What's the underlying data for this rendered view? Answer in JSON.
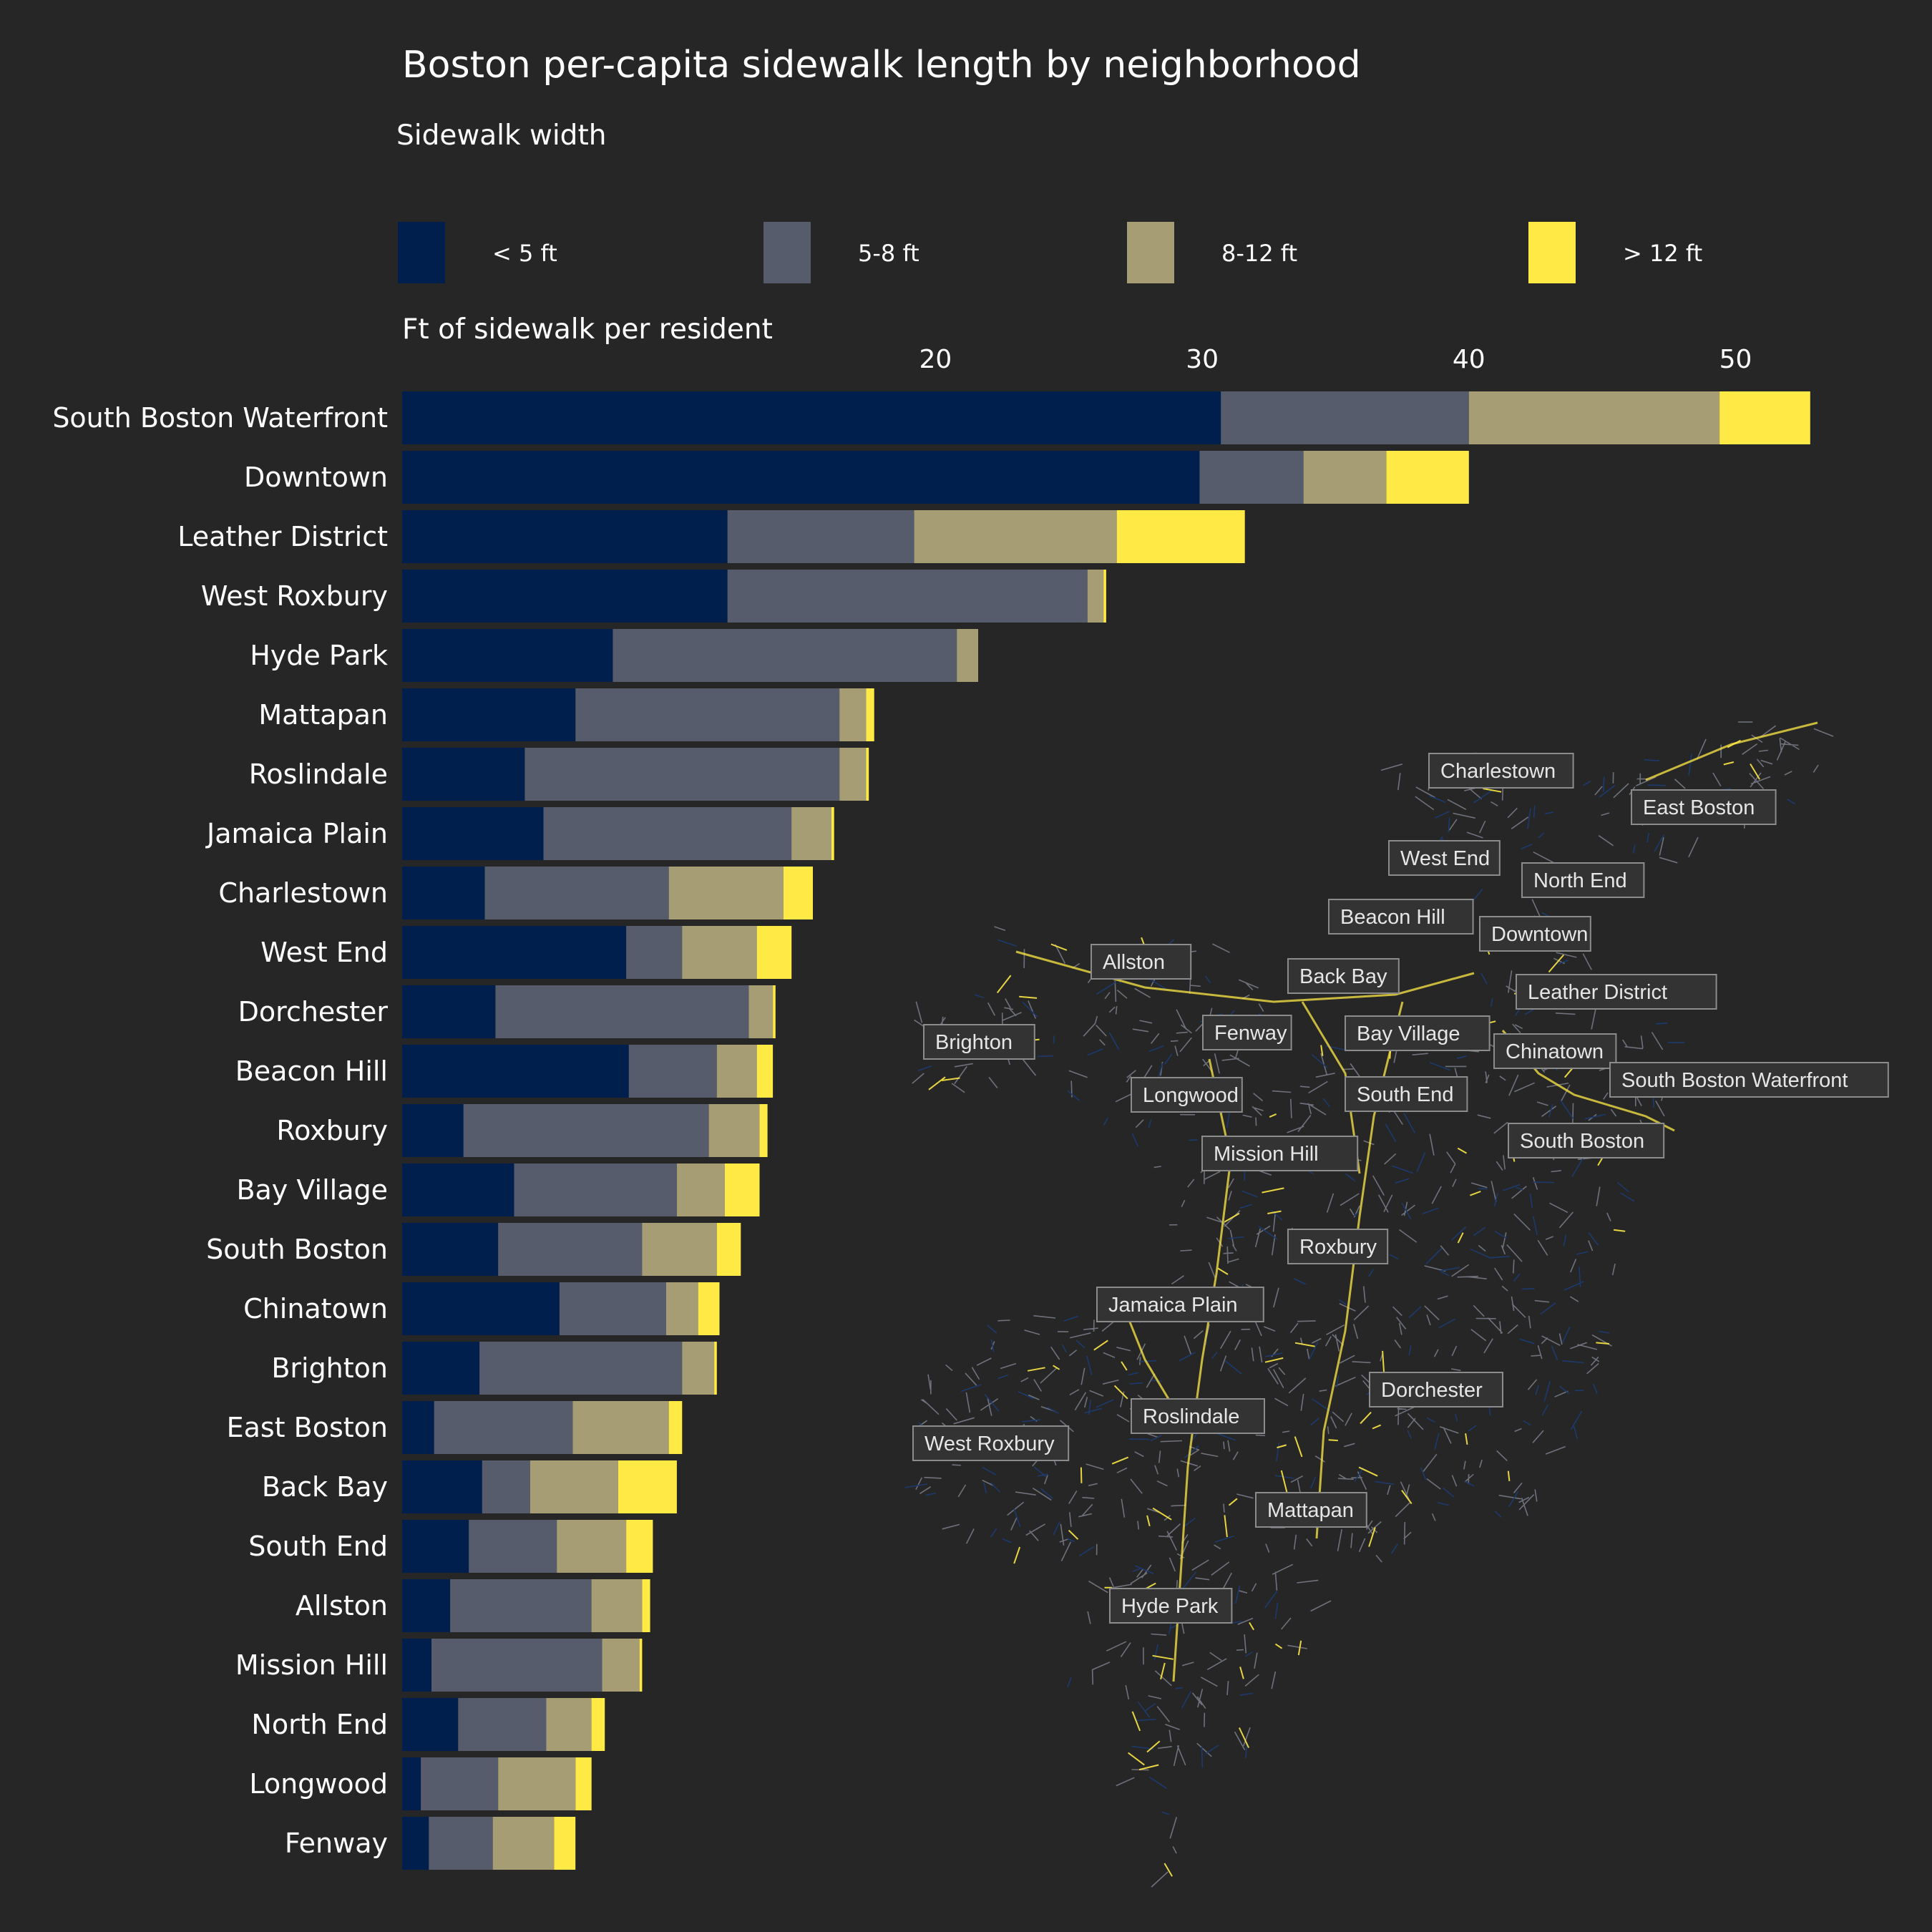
{
  "colors": {
    "background": "#262626",
    "lt5": "#001f4d",
    "5to8": "#575c6d",
    "8to12": "#a69d75",
    "gt12": "#ffe945",
    "map_street_gray": "#7c7f8c",
    "map_street_navy": "#1c3a6e",
    "map_street_yellow": "#ffe945"
  },
  "chart_data": {
    "type": "bar",
    "orientation": "horizontal",
    "stacked": true,
    "title": "Boston per-capita sidewalk length by neighborhood",
    "legend_title": "Sidewalk width",
    "legend_position": "top",
    "xlabel": "Ft of sidewalk per resident",
    "x_axis_position": "top",
    "xticks": [
      20,
      30,
      40,
      50
    ],
    "xlim": [
      0,
      55
    ],
    "grid": false,
    "categories": [
      "South Boston Waterfront",
      "Downtown",
      "Leather District",
      "West Roxbury",
      "Hyde Park",
      "Mattapan",
      "Roslindale",
      "Jamaica Plain",
      "Charlestown",
      "West End",
      "Dorchester",
      "Beacon Hill",
      "Roxbury",
      "Bay Village",
      "South Boston",
      "Chinatown",
      "Brighton",
      "East Boston",
      "Back Bay",
      "South End",
      "Allston",
      "Mission Hill",
      "North End",
      "Longwood",
      "Fenway"
    ],
    "series": [
      {
        "name": "< 5 ft",
        "color_key": "lt5",
        "values": [
          30.7,
          29.9,
          12.2,
          12.2,
          7.9,
          6.5,
          4.6,
          5.3,
          3.1,
          8.4,
          3.5,
          8.5,
          2.3,
          4.2,
          3.6,
          5.9,
          2.9,
          1.2,
          3.0,
          2.5,
          1.8,
          1.1,
          2.1,
          0.7,
          1.0
        ]
      },
      {
        "name": "5-8 ft",
        "color_key": "5to8",
        "values": [
          9.3,
          3.9,
          7.0,
          13.5,
          12.9,
          9.9,
          11.8,
          9.3,
          6.9,
          2.1,
          9.5,
          3.3,
          9.2,
          6.1,
          5.4,
          4.0,
          7.6,
          5.2,
          1.8,
          3.3,
          5.3,
          6.4,
          3.3,
          2.9,
          2.4
        ]
      },
      {
        "name": "8-12 ft",
        "color_key": "8to12",
        "values": [
          9.4,
          3.1,
          7.6,
          0.6,
          0.8,
          1.0,
          1.0,
          1.5,
          4.3,
          2.8,
          0.9,
          1.5,
          1.9,
          1.8,
          2.8,
          1.2,
          1.2,
          3.6,
          3.3,
          2.6,
          1.9,
          1.4,
          1.7,
          2.9,
          2.3
        ]
      },
      {
        "name": "> 12 ft",
        "color_key": "gt12",
        "values": [
          3.4,
          3.1,
          4.8,
          0.1,
          0.0,
          0.3,
          0.1,
          0.1,
          1.1,
          1.3,
          0.1,
          0.6,
          0.3,
          1.3,
          0.9,
          0.8,
          0.1,
          0.5,
          2.2,
          1.0,
          0.3,
          0.1,
          0.5,
          0.6,
          0.8
        ]
      }
    ]
  },
  "map": {
    "labels": [
      "Charlestown",
      "East Boston",
      "West End",
      "North End",
      "Beacon Hill",
      "Downtown",
      "Allston",
      "Back Bay",
      "Leather District",
      "Brighton",
      "Fenway",
      "Bay Village",
      "Chinatown",
      "South Boston Waterfront",
      "Longwood",
      "South End",
      "Mission Hill",
      "South Boston",
      "Roxbury",
      "Jamaica Plain",
      "Dorchester",
      "Roslindale",
      "West Roxbury",
      "Mattapan",
      "Hyde Park"
    ]
  }
}
